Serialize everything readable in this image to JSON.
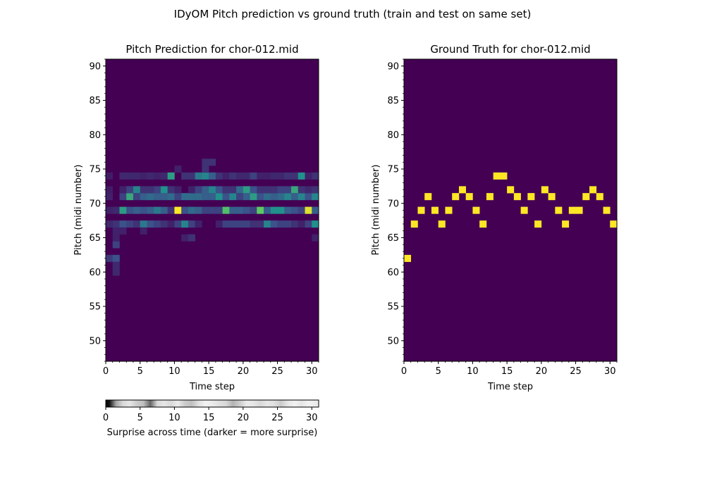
{
  "figure": {
    "title": "IDyOM Pitch prediction vs ground truth (train and test on same set)"
  },
  "chart_data": [
    {
      "type": "heatmap",
      "title": "Pitch Prediction for chor-012.mid",
      "xlabel": "Time step",
      "ylabel": "Pitch (midi number)",
      "xlim": [
        0,
        31
      ],
      "ylim": [
        47,
        91
      ],
      "xticks": [
        0,
        5,
        10,
        15,
        20,
        25,
        30
      ],
      "yticks": [
        50,
        55,
        60,
        65,
        70,
        75,
        80,
        85,
        90
      ],
      "colormap": "viridis",
      "background_color": "#440154",
      "cells": [
        {
          "t": 0,
          "p": 62,
          "v": 0.18
        },
        {
          "t": 1,
          "p": 62,
          "v": 0.25
        },
        {
          "t": 1,
          "p": 61,
          "v": 0.12
        },
        {
          "t": 1,
          "p": 60,
          "v": 0.12
        },
        {
          "t": 1,
          "p": 64,
          "v": 0.2
        },
        {
          "t": 1,
          "p": 65,
          "v": 0.1
        },
        {
          "t": 1,
          "p": 66,
          "v": 0.1
        },
        {
          "t": 1,
          "p": 67,
          "v": 0.15
        },
        {
          "t": 1,
          "p": 69,
          "v": 0.12
        },
        {
          "t": 0,
          "p": 67,
          "v": 0.12
        },
        {
          "t": 0,
          "p": 69,
          "v": 0.1
        },
        {
          "t": 0,
          "p": 71,
          "v": 0.1
        },
        {
          "t": 0,
          "p": 72,
          "v": 0.08
        },
        {
          "t": 0,
          "p": 74,
          "v": 0.08
        },
        {
          "t": 2,
          "p": 69,
          "v": 0.55
        },
        {
          "t": 2,
          "p": 67,
          "v": 0.25
        },
        {
          "t": 2,
          "p": 66,
          "v": 0.1
        },
        {
          "t": 2,
          "p": 71,
          "v": 0.2
        },
        {
          "t": 2,
          "p": 72,
          "v": 0.1
        },
        {
          "t": 2,
          "p": 74,
          "v": 0.12
        },
        {
          "t": 3,
          "p": 71,
          "v": 0.6
        },
        {
          "t": 3,
          "p": 69,
          "v": 0.25
        },
        {
          "t": 3,
          "p": 67,
          "v": 0.2
        },
        {
          "t": 3,
          "p": 72,
          "v": 0.2
        },
        {
          "t": 3,
          "p": 74,
          "v": 0.12
        },
        {
          "t": 4,
          "p": 72,
          "v": 0.45
        },
        {
          "t": 4,
          "p": 69,
          "v": 0.3
        },
        {
          "t": 4,
          "p": 71,
          "v": 0.2
        },
        {
          "t": 4,
          "p": 67,
          "v": 0.15
        },
        {
          "t": 4,
          "p": 74,
          "v": 0.12
        },
        {
          "t": 5,
          "p": 71,
          "v": 0.3
        },
        {
          "t": 5,
          "p": 67,
          "v": 0.4
        },
        {
          "t": 5,
          "p": 69,
          "v": 0.25
        },
        {
          "t": 5,
          "p": 72,
          "v": 0.15
        },
        {
          "t": 5,
          "p": 74,
          "v": 0.1
        },
        {
          "t": 5,
          "p": 66,
          "v": 0.1
        },
        {
          "t": 6,
          "p": 71,
          "v": 0.35
        },
        {
          "t": 6,
          "p": 69,
          "v": 0.3
        },
        {
          "t": 6,
          "p": 67,
          "v": 0.25
        },
        {
          "t": 6,
          "p": 72,
          "v": 0.15
        },
        {
          "t": 6,
          "p": 74,
          "v": 0.12
        },
        {
          "t": 7,
          "p": 71,
          "v": 0.3
        },
        {
          "t": 7,
          "p": 69,
          "v": 0.4
        },
        {
          "t": 7,
          "p": 67,
          "v": 0.2
        },
        {
          "t": 7,
          "p": 72,
          "v": 0.2
        },
        {
          "t": 7,
          "p": 74,
          "v": 0.1
        },
        {
          "t": 8,
          "p": 72,
          "v": 0.5
        },
        {
          "t": 8,
          "p": 71,
          "v": 0.3
        },
        {
          "t": 8,
          "p": 69,
          "v": 0.3
        },
        {
          "t": 8,
          "p": 67,
          "v": 0.15
        },
        {
          "t": 8,
          "p": 74,
          "v": 0.12
        },
        {
          "t": 9,
          "p": 74,
          "v": 0.55
        },
        {
          "t": 9,
          "p": 71,
          "v": 0.35
        },
        {
          "t": 9,
          "p": 72,
          "v": 0.15
        },
        {
          "t": 9,
          "p": 69,
          "v": 0.15
        },
        {
          "t": 9,
          "p": 67,
          "v": 0.1
        },
        {
          "t": 10,
          "p": 69,
          "v": 1.0
        },
        {
          "t": 10,
          "p": 71,
          "v": 0.2
        },
        {
          "t": 10,
          "p": 67,
          "v": 0.2
        },
        {
          "t": 10,
          "p": 72,
          "v": 0.1
        },
        {
          "t": 10,
          "p": 75,
          "v": 0.1
        },
        {
          "t": 11,
          "p": 71,
          "v": 0.35
        },
        {
          "t": 11,
          "p": 67,
          "v": 0.45
        },
        {
          "t": 11,
          "p": 69,
          "v": 0.25
        },
        {
          "t": 11,
          "p": 74,
          "v": 0.15
        },
        {
          "t": 11,
          "p": 65,
          "v": 0.1
        },
        {
          "t": 12,
          "p": 71,
          "v": 0.35
        },
        {
          "t": 12,
          "p": 69,
          "v": 0.35
        },
        {
          "t": 12,
          "p": 67,
          "v": 0.2
        },
        {
          "t": 12,
          "p": 74,
          "v": 0.15
        },
        {
          "t": 12,
          "p": 72,
          "v": 0.1
        },
        {
          "t": 12,
          "p": 65,
          "v": 0.15
        },
        {
          "t": 13,
          "p": 71,
          "v": 0.35
        },
        {
          "t": 13,
          "p": 69,
          "v": 0.3
        },
        {
          "t": 13,
          "p": 74,
          "v": 0.4
        },
        {
          "t": 13,
          "p": 72,
          "v": 0.2
        },
        {
          "t": 13,
          "p": 67,
          "v": 0.1
        },
        {
          "t": 14,
          "p": 74,
          "v": 0.45
        },
        {
          "t": 14,
          "p": 72,
          "v": 0.3
        },
        {
          "t": 14,
          "p": 71,
          "v": 0.3
        },
        {
          "t": 14,
          "p": 69,
          "v": 0.2
        },
        {
          "t": 14,
          "p": 75,
          "v": 0.15
        },
        {
          "t": 14,
          "p": 76,
          "v": 0.15
        },
        {
          "t": 15,
          "p": 72,
          "v": 0.45
        },
        {
          "t": 15,
          "p": 74,
          "v": 0.3
        },
        {
          "t": 15,
          "p": 71,
          "v": 0.3
        },
        {
          "t": 15,
          "p": 69,
          "v": 0.2
        },
        {
          "t": 15,
          "p": 76,
          "v": 0.15
        },
        {
          "t": 16,
          "p": 71,
          "v": 0.5
        },
        {
          "t": 16,
          "p": 72,
          "v": 0.25
        },
        {
          "t": 16,
          "p": 69,
          "v": 0.2
        },
        {
          "t": 16,
          "p": 74,
          "v": 0.15
        },
        {
          "t": 16,
          "p": 67,
          "v": 0.1
        },
        {
          "t": 17,
          "p": 69,
          "v": 0.7
        },
        {
          "t": 17,
          "p": 71,
          "v": 0.25
        },
        {
          "t": 17,
          "p": 67,
          "v": 0.2
        },
        {
          "t": 17,
          "p": 72,
          "v": 0.15
        },
        {
          "t": 17,
          "p": 74,
          "v": 0.1
        },
        {
          "t": 18,
          "p": 71,
          "v": 0.45
        },
        {
          "t": 18,
          "p": 69,
          "v": 0.3
        },
        {
          "t": 18,
          "p": 67,
          "v": 0.2
        },
        {
          "t": 18,
          "p": 74,
          "v": 0.15
        },
        {
          "t": 18,
          "p": 72,
          "v": 0.15
        },
        {
          "t": 19,
          "p": 72,
          "v": 0.35
        },
        {
          "t": 19,
          "p": 69,
          "v": 0.3
        },
        {
          "t": 19,
          "p": 67,
          "v": 0.2
        },
        {
          "t": 19,
          "p": 71,
          "v": 0.2
        },
        {
          "t": 19,
          "p": 74,
          "v": 0.12
        },
        {
          "t": 20,
          "p": 72,
          "v": 0.55
        },
        {
          "t": 20,
          "p": 71,
          "v": 0.3
        },
        {
          "t": 20,
          "p": 69,
          "v": 0.25
        },
        {
          "t": 20,
          "p": 67,
          "v": 0.2
        },
        {
          "t": 20,
          "p": 74,
          "v": 0.12
        },
        {
          "t": 21,
          "p": 71,
          "v": 0.55
        },
        {
          "t": 21,
          "p": 72,
          "v": 0.25
        },
        {
          "t": 21,
          "p": 69,
          "v": 0.2
        },
        {
          "t": 21,
          "p": 74,
          "v": 0.2
        },
        {
          "t": 21,
          "p": 67,
          "v": 0.15
        },
        {
          "t": 22,
          "p": 69,
          "v": 0.75
        },
        {
          "t": 22,
          "p": 71,
          "v": 0.25
        },
        {
          "t": 22,
          "p": 72,
          "v": 0.15
        },
        {
          "t": 22,
          "p": 67,
          "v": 0.15
        },
        {
          "t": 22,
          "p": 74,
          "v": 0.1
        },
        {
          "t": 23,
          "p": 67,
          "v": 0.45
        },
        {
          "t": 23,
          "p": 71,
          "v": 0.35
        },
        {
          "t": 23,
          "p": 69,
          "v": 0.3
        },
        {
          "t": 23,
          "p": 72,
          "v": 0.15
        },
        {
          "t": 23,
          "p": 74,
          "v": 0.1
        },
        {
          "t": 24,
          "p": 69,
          "v": 0.5
        },
        {
          "t": 24,
          "p": 71,
          "v": 0.3
        },
        {
          "t": 24,
          "p": 67,
          "v": 0.25
        },
        {
          "t": 24,
          "p": 72,
          "v": 0.15
        },
        {
          "t": 24,
          "p": 74,
          "v": 0.12
        },
        {
          "t": 25,
          "p": 69,
          "v": 0.5
        },
        {
          "t": 25,
          "p": 71,
          "v": 0.35
        },
        {
          "t": 25,
          "p": 67,
          "v": 0.2
        },
        {
          "t": 25,
          "p": 72,
          "v": 0.2
        },
        {
          "t": 25,
          "p": 74,
          "v": 0.12
        },
        {
          "t": 26,
          "p": 71,
          "v": 0.45
        },
        {
          "t": 26,
          "p": 69,
          "v": 0.3
        },
        {
          "t": 26,
          "p": 72,
          "v": 0.2
        },
        {
          "t": 26,
          "p": 67,
          "v": 0.2
        },
        {
          "t": 26,
          "p": 74,
          "v": 0.15
        },
        {
          "t": 27,
          "p": 72,
          "v": 0.6
        },
        {
          "t": 27,
          "p": 71,
          "v": 0.3
        },
        {
          "t": 27,
          "p": 69,
          "v": 0.25
        },
        {
          "t": 27,
          "p": 74,
          "v": 0.15
        },
        {
          "t": 27,
          "p": 67,
          "v": 0.15
        },
        {
          "t": 28,
          "p": 74,
          "v": 0.5
        },
        {
          "t": 28,
          "p": 71,
          "v": 0.45
        },
        {
          "t": 28,
          "p": 69,
          "v": 0.2
        },
        {
          "t": 28,
          "p": 72,
          "v": 0.15
        },
        {
          "t": 28,
          "p": 67,
          "v": 0.1
        },
        {
          "t": 29,
          "p": 69,
          "v": 0.95
        },
        {
          "t": 29,
          "p": 71,
          "v": 0.25
        },
        {
          "t": 29,
          "p": 67,
          "v": 0.2
        },
        {
          "t": 29,
          "p": 72,
          "v": 0.12
        },
        {
          "t": 29,
          "p": 74,
          "v": 0.1
        },
        {
          "t": 30,
          "p": 71,
          "v": 0.45
        },
        {
          "t": 30,
          "p": 67,
          "v": 0.5
        },
        {
          "t": 30,
          "p": 69,
          "v": 0.3
        },
        {
          "t": 30,
          "p": 74,
          "v": 0.15
        },
        {
          "t": 30,
          "p": 72,
          "v": 0.15
        },
        {
          "t": 30,
          "p": 65,
          "v": 0.1
        }
      ]
    },
    {
      "type": "heatmap",
      "title": "Ground Truth for chor-012.mid",
      "xlabel": "Time step",
      "ylabel": "Pitch (midi number)",
      "xlim": [
        0,
        31
      ],
      "ylim": [
        47,
        91
      ],
      "xticks": [
        0,
        5,
        10,
        15,
        20,
        25,
        30
      ],
      "yticks": [
        50,
        55,
        60,
        65,
        70,
        75,
        80,
        85,
        90
      ],
      "colormap": "viridis",
      "background_color": "#440154",
      "note_color": "#fde725",
      "notes": [
        {
          "t": 0,
          "p": 62
        },
        {
          "t": 1,
          "p": 67
        },
        {
          "t": 2,
          "p": 69
        },
        {
          "t": 3,
          "p": 71
        },
        {
          "t": 4,
          "p": 69
        },
        {
          "t": 5,
          "p": 67
        },
        {
          "t": 6,
          "p": 69
        },
        {
          "t": 7,
          "p": 71
        },
        {
          "t": 8,
          "p": 72
        },
        {
          "t": 9,
          "p": 71
        },
        {
          "t": 10,
          "p": 69
        },
        {
          "t": 11,
          "p": 67
        },
        {
          "t": 12,
          "p": 71
        },
        {
          "t": 13,
          "p": 74
        },
        {
          "t": 14,
          "p": 74
        },
        {
          "t": 15,
          "p": 72
        },
        {
          "t": 16,
          "p": 71
        },
        {
          "t": 17,
          "p": 69
        },
        {
          "t": 18,
          "p": 71
        },
        {
          "t": 19,
          "p": 67
        },
        {
          "t": 20,
          "p": 72
        },
        {
          "t": 21,
          "p": 71
        },
        {
          "t": 22,
          "p": 69
        },
        {
          "t": 23,
          "p": 67
        },
        {
          "t": 24,
          "p": 69
        },
        {
          "t": 25,
          "p": 69
        },
        {
          "t": 26,
          "p": 71
        },
        {
          "t": 27,
          "p": 72
        },
        {
          "t": 28,
          "p": 71
        },
        {
          "t": 29,
          "p": 69
        },
        {
          "t": 30,
          "p": 67
        }
      ]
    },
    {
      "type": "heatmap",
      "title": "",
      "xlabel": "Surprise across time (darker = more surprise)",
      "xlim": [
        0,
        31
      ],
      "xticks": [
        0,
        5,
        10,
        15,
        20,
        25,
        30
      ],
      "colormap": "greys",
      "surprise": [
        0.95,
        0.35,
        0.15,
        0.1,
        0.2,
        0.25,
        0.6,
        0.15,
        0.1,
        0.15,
        0.08,
        0.2,
        0.25,
        0.12,
        0.05,
        0.08,
        0.12,
        0.15,
        0.3,
        0.2,
        0.08,
        0.1,
        0.15,
        0.1,
        0.12,
        0.2,
        0.1,
        0.05,
        0.1,
        0.05,
        0.08
      ]
    }
  ]
}
